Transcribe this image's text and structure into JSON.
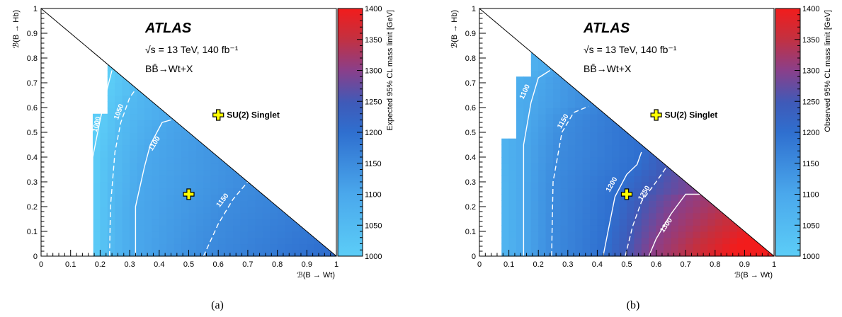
{
  "chart_data": [
    {
      "type": "heatmap",
      "panel_caption": "(a)",
      "xlabel": "ℬ(B → Wt)",
      "ylabel": "ℬ(B → Hb)",
      "xlim": [
        0,
        1
      ],
      "ylim": [
        0,
        1
      ],
      "xticks": [
        "0",
        "0.1",
        "0.2",
        "0.3",
        "0.4",
        "0.5",
        "0.6",
        "0.7",
        "0.8",
        "0.9",
        "1"
      ],
      "yticks": [
        "0",
        "0.1",
        "0.2",
        "0.3",
        "0.4",
        "0.5",
        "0.6",
        "0.7",
        "0.8",
        "0.9",
        "1"
      ],
      "colorbar": {
        "label": "Expected 95% CL mass limit [GeV]",
        "range": [
          1000,
          1400
        ],
        "ticks": [
          "1000",
          "1050",
          "1100",
          "1150",
          "1200",
          "1250",
          "1300",
          "1350",
          "1400"
        ]
      },
      "annotations": {
        "experiment": "ATLAS",
        "energy_lumi": "√s = 13 TeV, 140 fb⁻¹",
        "process": "BB̄→Wt+X",
        "benchmark_label": "SU(2) Singlet"
      },
      "benchmark_point": {
        "x": 0.5,
        "y": 0.25
      },
      "legend_marker": {
        "x": 0.6,
        "y": 0.57
      },
      "region_edge_steps": [
        {
          "x": 0.175,
          "y_max": 0.575
        },
        {
          "x": 0.225,
          "y_max": 0.775
        }
      ],
      "contours": [
        {
          "mass": 1000,
          "label": "1000",
          "style": "solid",
          "points": [
            [
              0.175,
              0.0
            ],
            [
              0.175,
              0.4
            ],
            [
              0.2,
              0.55
            ],
            [
              0.225,
              0.68
            ],
            [
              0.24,
              0.75
            ]
          ]
        },
        {
          "mass": 1050,
          "label": "1050",
          "style": "dashed",
          "points": [
            [
              0.232,
              0.0
            ],
            [
              0.235,
              0.2
            ],
            [
              0.25,
              0.42
            ],
            [
              0.27,
              0.54
            ],
            [
              0.3,
              0.64
            ],
            [
              0.315,
              0.665
            ]
          ]
        },
        {
          "mass": 1100,
          "label": "1100",
          "style": "solid",
          "points": [
            [
              0.32,
              0.0
            ],
            [
              0.32,
              0.2
            ],
            [
              0.35,
              0.36
            ],
            [
              0.37,
              0.45
            ],
            [
              0.41,
              0.54
            ],
            [
              0.44,
              0.55
            ]
          ]
        },
        {
          "mass": 1150,
          "label": "1150",
          "style": "dashed",
          "points": [
            [
              0.55,
              0.0
            ],
            [
              0.6,
              0.13
            ],
            [
              0.65,
              0.23
            ],
            [
              0.7,
              0.3
            ]
          ]
        }
      ],
      "contour_labels": [
        {
          "label": "1000",
          "x": 0.195,
          "y": 0.53,
          "angle": -75
        },
        {
          "label": "1050",
          "x": 0.27,
          "y": 0.58,
          "angle": -70
        },
        {
          "label": "1100",
          "x": 0.39,
          "y": 0.45,
          "angle": -58
        },
        {
          "label": "1150",
          "x": 0.62,
          "y": 0.22,
          "angle": -52
        }
      ]
    },
    {
      "type": "heatmap",
      "panel_caption": "(b)",
      "xlabel": "ℬ(B → Wt)",
      "ylabel": "ℬ(B → Hb)",
      "xlim": [
        0,
        1
      ],
      "ylim": [
        0,
        1
      ],
      "xticks": [
        "0",
        "0.1",
        "0.2",
        "0.3",
        "0.4",
        "0.5",
        "0.6",
        "0.7",
        "0.8",
        "0.9",
        "1"
      ],
      "yticks": [
        "0",
        "0.1",
        "0.2",
        "0.3",
        "0.4",
        "0.5",
        "0.6",
        "0.7",
        "0.8",
        "0.9",
        "1"
      ],
      "colorbar": {
        "label": "Observed 95% CL mass limit [GeV]",
        "range": [
          1000,
          1400
        ],
        "ticks": [
          "1000",
          "1050",
          "1100",
          "1150",
          "1200",
          "1250",
          "1300",
          "1350",
          "1400"
        ]
      },
      "annotations": {
        "experiment": "ATLAS",
        "energy_lumi": "√s = 13 TeV, 140 fb⁻¹",
        "process": "BB̄→Wt+X",
        "benchmark_label": "SU(2) Singlet"
      },
      "benchmark_point": {
        "x": 0.5,
        "y": 0.25
      },
      "legend_marker": {
        "x": 0.6,
        "y": 0.57
      },
      "region_edge_steps": [
        {
          "x": 0.075,
          "y_max": 0.475
        },
        {
          "x": 0.125,
          "y_max": 0.725
        },
        {
          "x": 0.175,
          "y_max": 0.825
        }
      ],
      "contours": [
        {
          "mass": 1100,
          "label": "1100",
          "style": "solid",
          "points": [
            [
              0.15,
              0.0
            ],
            [
              0.15,
              0.45
            ],
            [
              0.175,
              0.62
            ],
            [
              0.2,
              0.72
            ],
            [
              0.24,
              0.75
            ]
          ]
        },
        {
          "mass": 1150,
          "label": "1150",
          "style": "dashed",
          "points": [
            [
              0.245,
              0.0
            ],
            [
              0.25,
              0.3
            ],
            [
              0.28,
              0.5
            ],
            [
              0.32,
              0.58
            ],
            [
              0.37,
              0.605
            ]
          ]
        },
        {
          "mass": 1200,
          "label": "1200",
          "style": "solid",
          "points": [
            [
              0.42,
              0.0
            ],
            [
              0.44,
              0.12
            ],
            [
              0.46,
              0.24
            ],
            [
              0.5,
              0.33
            ],
            [
              0.535,
              0.37
            ],
            [
              0.55,
              0.42
            ]
          ]
        },
        {
          "mass": 1250,
          "label": "1250",
          "style": "dashed",
          "points": [
            [
              0.495,
              0.0
            ],
            [
              0.52,
              0.12
            ],
            [
              0.55,
              0.22
            ],
            [
              0.6,
              0.3
            ],
            [
              0.635,
              0.36
            ]
          ]
        },
        {
          "mass": 1300,
          "label": "1300",
          "style": "solid",
          "points": [
            [
              0.575,
              0.0
            ],
            [
              0.6,
              0.07
            ],
            [
              0.65,
              0.17
            ],
            [
              0.7,
              0.25
            ],
            [
              0.75,
              0.25
            ]
          ]
        }
      ],
      "contour_labels": [
        {
          "label": "1100",
          "x": 0.16,
          "y": 0.66,
          "angle": -65
        },
        {
          "label": "1150",
          "x": 0.29,
          "y": 0.54,
          "angle": -60
        },
        {
          "label": "1200",
          "x": 0.455,
          "y": 0.285,
          "angle": -60
        },
        {
          "label": "1250",
          "x": 0.565,
          "y": 0.25,
          "angle": -58
        },
        {
          "label": "1300",
          "x": 0.64,
          "y": 0.12,
          "angle": -55
        }
      ]
    }
  ]
}
